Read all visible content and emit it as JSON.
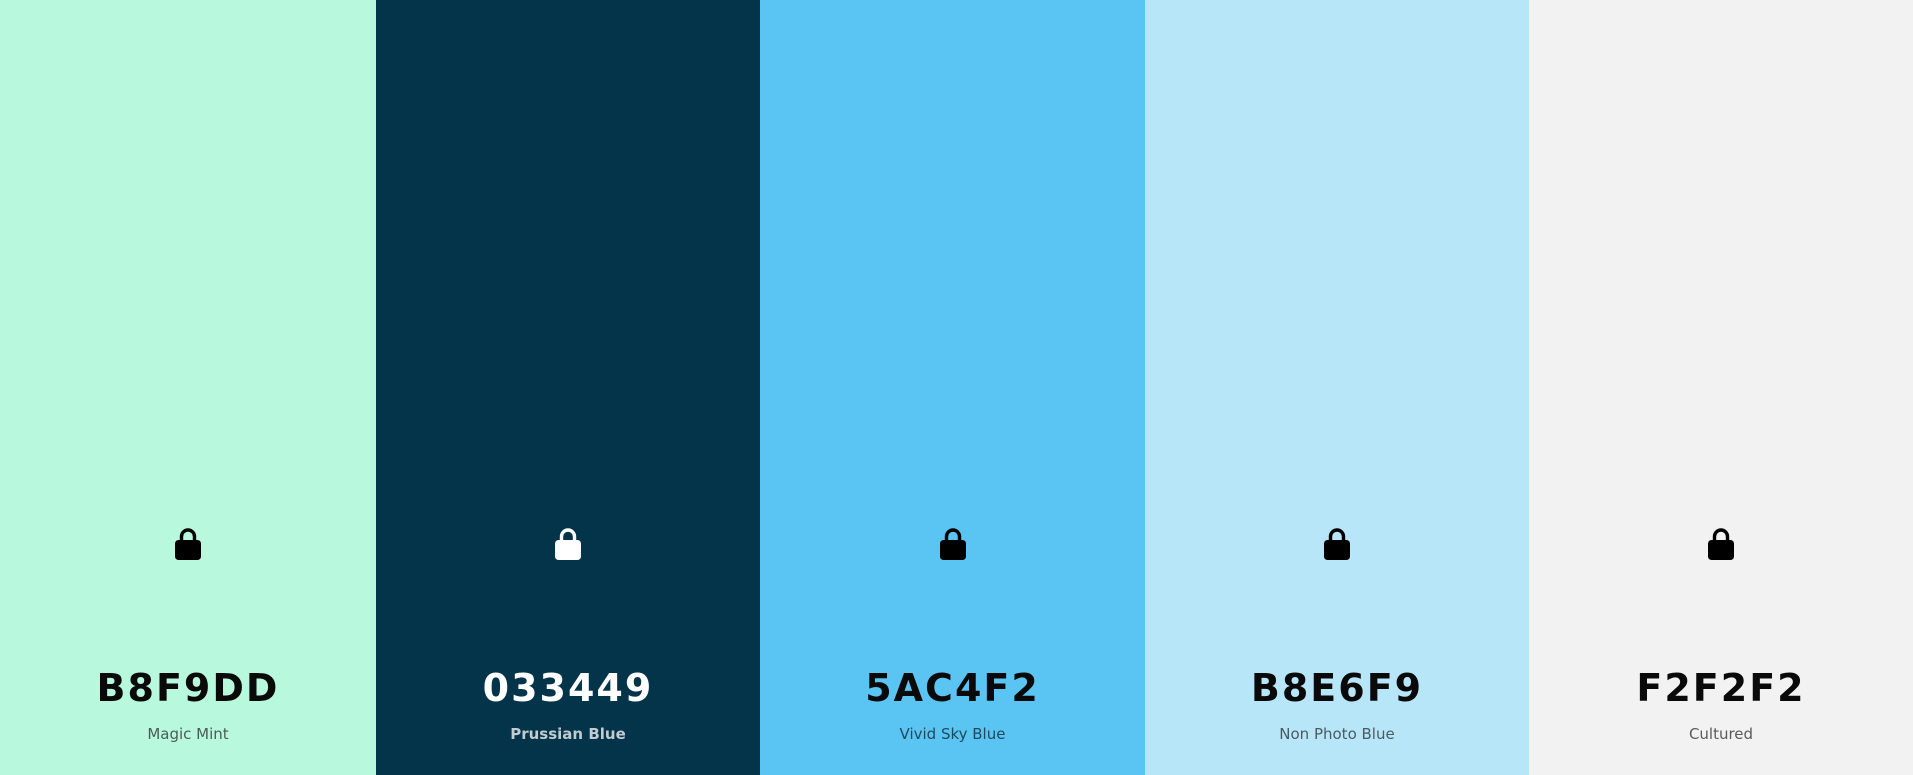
{
  "palette": [
    {
      "hex": "B8F9DD",
      "name": "Magic Mint",
      "background": "#B8F9DD",
      "text_color": "#0A0A0A",
      "name_color": "#4A5C55",
      "icon": "lock-icon",
      "icon_color": "#000000"
    },
    {
      "hex": "033449",
      "name": "Prussian Blue",
      "background": "#033449",
      "text_color": "#FFFFFF",
      "name_color": "#C2CBD0",
      "icon": "lock-icon",
      "icon_color": "#FFFFFF"
    },
    {
      "hex": "5AC4F2",
      "name": "Vivid Sky Blue",
      "background": "#5AC4F2",
      "text_color": "#0A0A0A",
      "name_color": "#1F4A5E",
      "icon": "lock-icon",
      "icon_color": "#000000"
    },
    {
      "hex": "B8E6F9",
      "name": "Non Photo Blue",
      "background": "#B8E6F9",
      "text_color": "#0A0A0A",
      "name_color": "#4B5A61",
      "icon": "lock-icon",
      "icon_color": "#000000"
    },
    {
      "hex": "F2F2F2",
      "name": "Cultured",
      "background": "#F2F2F2",
      "text_color": "#0A0A0A",
      "name_color": "#5A5A5A",
      "icon": "lock-icon",
      "icon_color": "#000000"
    }
  ]
}
